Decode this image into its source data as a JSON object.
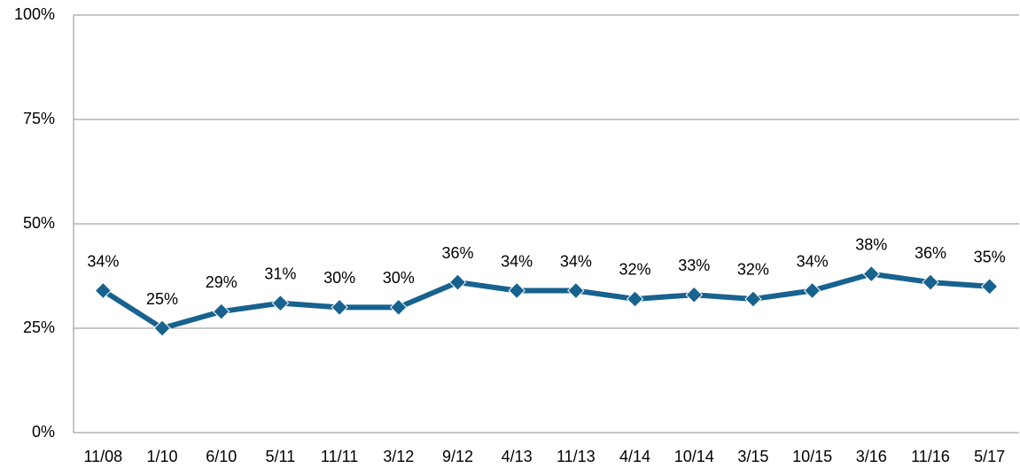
{
  "chart_data": {
    "type": "line",
    "categories": [
      "11/08",
      "1/10",
      "6/10",
      "5/11",
      "11/11",
      "3/12",
      "9/12",
      "4/13",
      "11/13",
      "4/14",
      "10/14",
      "3/15",
      "10/15",
      "3/16",
      "11/16",
      "5/17"
    ],
    "series": [
      {
        "color": "#17628f",
        "values": [
          34,
          25,
          29,
          31,
          30,
          30,
          36,
          34,
          34,
          32,
          33,
          32,
          34,
          38,
          36,
          35
        ],
        "value_labels": [
          "34%",
          "25%",
          "29%",
          "31%",
          "30%",
          "30%",
          "36%",
          "34%",
          "34%",
          "32%",
          "33%",
          "32%",
          "34%",
          "38%",
          "36%",
          "35%"
        ]
      }
    ],
    "ylim": [
      0,
      100
    ],
    "yticks": [
      {
        "value": 0,
        "label": "0%"
      },
      {
        "value": 25,
        "label": "25%"
      },
      {
        "value": 50,
        "label": "50%"
      },
      {
        "value": 75,
        "label": "75%"
      },
      {
        "value": 100,
        "label": "100%"
      }
    ],
    "grid": true
  }
}
